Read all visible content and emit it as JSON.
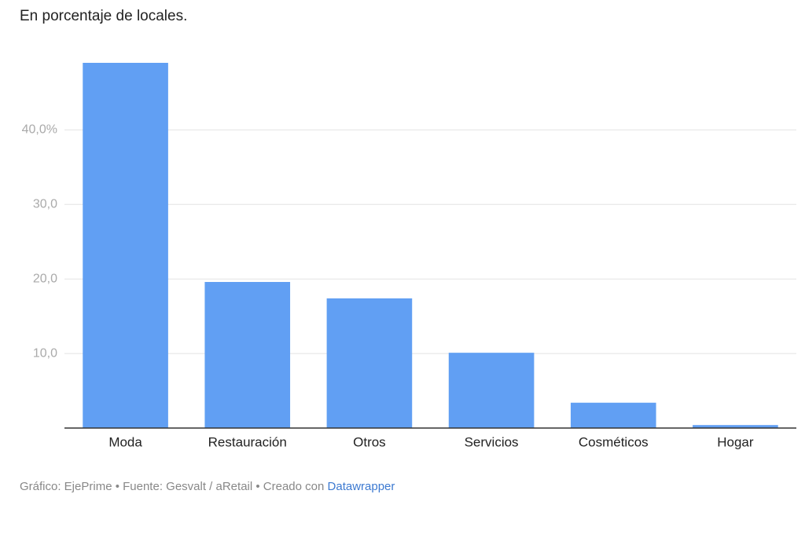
{
  "chart_data": {
    "type": "bar",
    "title": "En porcentaje de locales.",
    "categories": [
      "Moda",
      "Restauración",
      "Otros",
      "Servicios",
      "Cosméticos",
      "Hogar"
    ],
    "values": [
      49.0,
      19.6,
      17.4,
      10.1,
      3.4,
      0.4
    ],
    "color": "#619ff3",
    "ylim": [
      0,
      49
    ],
    "yticks": [
      {
        "value": 10,
        "label": "10,0"
      },
      {
        "value": 20,
        "label": "20,0"
      },
      {
        "value": 30,
        "label": "30,0"
      },
      {
        "value": 40,
        "label": "40,0%"
      }
    ],
    "grid": true
  },
  "footer": {
    "text": "Gráfico: EjePrime • Fuente: Gesvalt / aRetail • Creado con",
    "link": "Datawrapper"
  }
}
